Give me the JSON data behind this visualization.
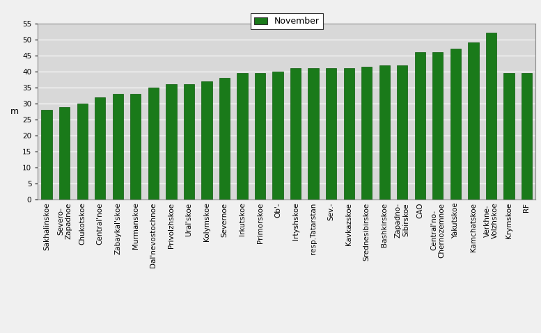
{
  "categories": [
    "Sakhalinskoe",
    "Severo-\nZapadnoe",
    "Chukotskoe",
    "Central'noe",
    "Zabaykal'skoe",
    "Murmanskoe",
    "Dal'nevostochnoe",
    "Privolzhskoe",
    "Ural'skoe",
    "Kolymskoe",
    "Severnoe",
    "Irkutskoe",
    "Primorskoe",
    "Ob'-",
    "Irtyshskoe",
    "resp.Tatarstan",
    "Sev.-",
    "Kavkazskoe",
    "Srednesibirskoe",
    "Bashkirskoe",
    "Zapadno-\nSibirskoe",
    "CAO",
    "Central'no-\nChernozemnoe",
    "Yakutskoe",
    "Kamchatskoe",
    "Verkhne-\nVolzhskoe",
    "Krymskoe",
    "RF"
  ],
  "values": [
    28.0,
    29.0,
    30.0,
    32.0,
    33.0,
    33.0,
    35.0,
    36.0,
    36.0,
    37.0,
    38.0,
    39.5,
    39.5,
    40.0,
    41.0,
    41.0,
    41.0,
    41.0,
    41.5,
    42.0,
    42.0,
    46.0,
    46.0,
    47.0,
    49.0,
    52.0,
    39.5,
    39.5
  ],
  "bar_color": "#1a7a1a",
  "bar_edge_color": "#0d5c0d",
  "ylabel": "m",
  "ylim": [
    0,
    55
  ],
  "yticks": [
    0,
    5,
    10,
    15,
    20,
    25,
    30,
    35,
    40,
    45,
    50,
    55
  ],
  "legend_label": "November",
  "legend_color": "#1a7a1a",
  "fig_bg_color": "#f0f0f0",
  "plot_bg_color": "#d8d8d8",
  "axis_fontsize": 9,
  "tick_fontsize": 7.5,
  "legend_fontsize": 9
}
